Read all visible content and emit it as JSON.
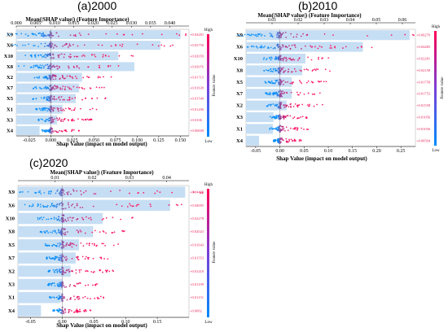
{
  "colors": {
    "high": "#ff0052",
    "low": "#008bfb",
    "bar": "#c6def4",
    "imp_text": "#e8285f"
  },
  "chart_data": [
    {
      "type": "bar",
      "title": "(a)2000",
      "top_axis_label": "Mean(|SHAP value|) (Feature Importance)",
      "bottom_axis_label": "Shap Value (impact on model output)",
      "colorbar": {
        "label": "Feature value",
        "high": "High",
        "low": "Low"
      },
      "top_xlim": [
        0.0,
        0.045
      ],
      "top_ticks": [
        "0.000",
        "0.005",
        "0.010",
        "0.015",
        "0.020",
        "0.025",
        "0.030",
        "0.035",
        "0.040"
      ],
      "bottom_xlim": [
        -0.04,
        0.16
      ],
      "bottom_ticks": [
        "-0.025",
        "0.000",
        "0.025",
        "0.050",
        "0.075",
        "0.100",
        "0.125",
        "0.150"
      ],
      "categories": [
        "X9",
        "X6",
        "X10",
        "X8",
        "X2",
        "X7",
        "X5",
        "X1",
        "X3",
        "X4"
      ],
      "values": [
        0.04281,
        0.03758,
        0.02659,
        0.03076,
        0.01715,
        0.01639,
        0.01549,
        0.01206,
        0.0106,
        0.00608
      ],
      "value_labels": [
        "+0.04281",
        "+0.03758",
        "+0.02659",
        "+0.03076",
        "+0.01715",
        "+0.01639",
        "+0.01549",
        "+0.01206",
        "+0.0106",
        "+0.00608"
      ]
    },
    {
      "type": "bar",
      "title": "(b)2010",
      "top_axis_label": "Mean(|SHAP value|) (Feature Importance)",
      "bottom_axis_label": "Shap Value (impact on model output)",
      "colorbar": {
        "label": "Feature value",
        "high": "High",
        "low": "Low"
      },
      "top_xlim": [
        0.0,
        0.065
      ],
      "top_ticks": [
        "0.01",
        "0.02",
        "0.03",
        "0.04",
        "0.05",
        "0.06"
      ],
      "bottom_xlim": [
        -0.07,
        0.28
      ],
      "bottom_ticks": [
        "-0.05",
        "0.00",
        "0.05",
        "0.10",
        "0.15",
        "0.20",
        "0.25"
      ],
      "categories": [
        "X9",
        "X6",
        "X10",
        "X8",
        "X5",
        "X7",
        "X2",
        "X3",
        "X1",
        "X4"
      ],
      "values": [
        0.06279,
        0.04485,
        0.02281,
        0.02158,
        0.01758,
        0.01753,
        0.01558,
        0.01056,
        0.01036,
        0.00504
      ],
      "value_labels": [
        "+0.06279",
        "+0.04485",
        "+0.02281",
        "+0.02158",
        "+0.01758",
        "+0.01753",
        "+0.01558",
        "+0.01056",
        "+0.01036",
        "+0.00504"
      ]
    },
    {
      "type": "bar",
      "title": "(c)2020",
      "top_axis_label": "Mean(|SHAP value|) (Feature Importance)",
      "bottom_axis_label": "Shap Value (impact on model output)",
      "colorbar": {
        "label": "Feature value",
        "high": "High",
        "low": "Low"
      },
      "top_xlim": [
        0.0,
        0.046
      ],
      "top_ticks": [
        "0.01",
        "0.02",
        "0.03",
        "0.04"
      ],
      "bottom_xlim": [
        -0.07,
        0.2
      ],
      "bottom_ticks": [
        "-0.05",
        "0.00",
        "0.05",
        "0.10",
        "0.15"
      ],
      "categories": [
        "X9",
        "X6",
        "X10",
        "X8",
        "X5",
        "X7",
        "X2",
        "X3",
        "X1",
        "X4"
      ],
      "values": [
        0.04499,
        0.04095,
        0.02278,
        0.02023,
        0.01643,
        0.01553,
        0.01418,
        0.01199,
        0.01151,
        0.0062
      ],
      "value_labels": [
        "+0.04499",
        "+0.04095",
        "+0.02278",
        "+0.02023",
        "+0.01643",
        "+0.01553",
        "+0.01418",
        "+0.01199",
        "+0.01151",
        "+0.0062"
      ]
    }
  ]
}
